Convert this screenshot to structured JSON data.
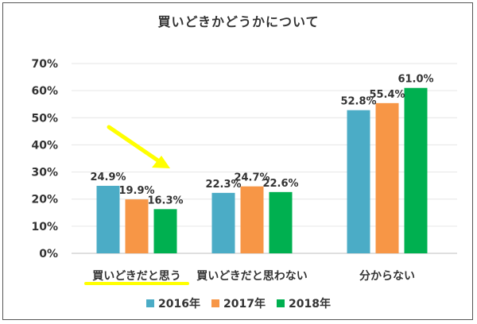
{
  "chart_data": {
    "type": "bar",
    "title": "買いどきかどうかについて",
    "categories": [
      "買いどきだと思う",
      "買いどきだと思わない",
      "分からない"
    ],
    "series": [
      {
        "name": "2016年",
        "color": "#4bacc6",
        "values": [
          24.9,
          22.3,
          52.8
        ],
        "labels": [
          "24.9%",
          "22.3%",
          "52.8%"
        ]
      },
      {
        "name": "2017年",
        "color": "#f79646",
        "values": [
          19.9,
          24.7,
          55.4
        ],
        "labels": [
          "19.9%",
          "24.7%",
          "55.4%"
        ]
      },
      {
        "name": "2018年",
        "color": "#00b050",
        "values": [
          16.3,
          22.6,
          61.0
        ],
        "labels": [
          "16.3%",
          "22.6%",
          "61.0%"
        ]
      }
    ],
    "ylim": [
      0,
      70
    ],
    "yticks": [
      0,
      10,
      20,
      30,
      40,
      50,
      60,
      70
    ],
    "ytick_labels": [
      "0%",
      "10%",
      "20%",
      "30%",
      "40%",
      "50%",
      "60%",
      "70%"
    ],
    "grid": true,
    "legend_position": "bottom",
    "highlight": {
      "category_index": 0,
      "arrow_color": "#ffff00",
      "underline_color": "#ffff00"
    }
  }
}
